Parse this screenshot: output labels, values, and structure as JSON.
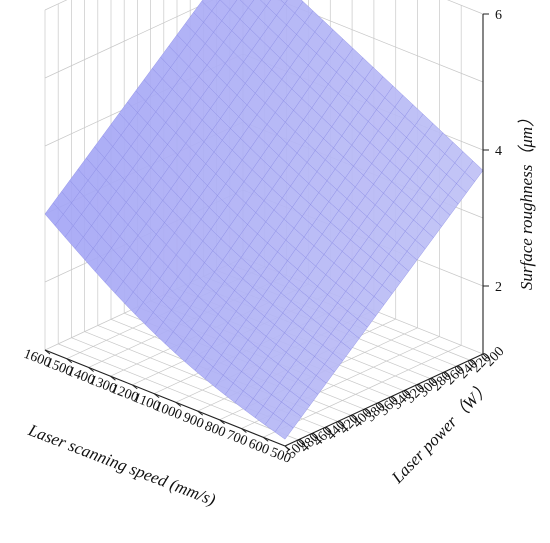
{
  "chart_data": {
    "type": "surface3d",
    "title": "",
    "zlabel": "Surface roughness（μm）",
    "xlabel": "Laser scanning speed (mm/s)",
    "ylabel": "Laser power（W）",
    "x_ticks": [
      500,
      600,
      700,
      800,
      900,
      1000,
      1100,
      1200,
      1300,
      1400,
      1500,
      1600
    ],
    "y_ticks": [
      200,
      220,
      240,
      260,
      280,
      300,
      320,
      340,
      360,
      380,
      400,
      420,
      440,
      460,
      480,
      500
    ],
    "z_ticks": [
      2,
      4,
      6
    ],
    "xlim": [
      500,
      1600
    ],
    "ylim": [
      200,
      500
    ],
    "zlim": [
      1,
      6
    ],
    "grid": true,
    "surface_color": "#9a9cf5",
    "corner_values": {
      "speed_1600_power_200": 5.6,
      "speed_1600_power_500": 3.0,
      "speed_500_power_200": 3.7,
      "speed_500_power_500": 1.1
    }
  }
}
